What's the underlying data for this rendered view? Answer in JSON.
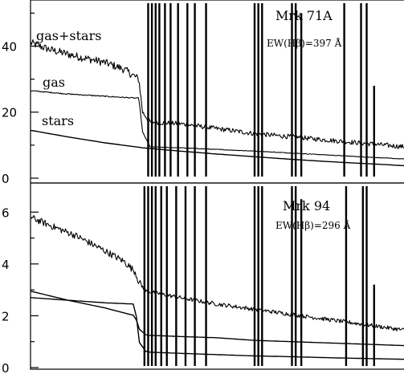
{
  "chart_data": [
    {
      "type": "line",
      "panel": "top",
      "title": "",
      "xlabel": "",
      "ylabel": "",
      "ylim": [
        0,
        53
      ],
      "yticks": [
        0,
        20,
        40
      ],
      "annotations": {
        "object": "Mrk  71A",
        "ew": "EW(Hβ)=397 Å",
        "series_labels": [
          "gas+stars",
          "gas",
          "stars"
        ]
      },
      "series": [
        {
          "name": "gas+stars",
          "x": [
            0,
            0.05,
            0.12,
            0.2,
            0.25,
            0.29,
            0.3,
            0.32,
            0.4,
            0.5,
            0.6,
            0.7,
            0.8,
            0.9,
            1.0
          ],
          "y": [
            41,
            39,
            37,
            35,
            33,
            30,
            20,
            17,
            16.5,
            15,
            13.5,
            12.5,
            11.5,
            10.5,
            9.5
          ],
          "noise": 1.2
        },
        {
          "name": "gas",
          "x": [
            0,
            0.1,
            0.2,
            0.29,
            0.3,
            0.32,
            0.4,
            0.5,
            0.6,
            0.7,
            0.8,
            0.9,
            1.0
          ],
          "y": [
            26.5,
            25.5,
            24.8,
            24.2,
            14,
            9.5,
            9.2,
            8.7,
            8.2,
            7.6,
            7,
            6.4,
            5.8
          ],
          "noise": 0.15
        },
        {
          "name": "stars",
          "x": [
            0,
            0.1,
            0.2,
            0.3,
            0.4,
            0.5,
            0.6,
            0.7,
            0.8,
            0.9,
            1.0
          ],
          "y": [
            14.5,
            12.5,
            10.7,
            9.2,
            8.2,
            7.3,
            6.5,
            5.7,
            5.0,
            4.4,
            3.8
          ],
          "noise": 0
        }
      ],
      "emission_lines": [
        {
          "x": 0.315,
          "y": 53
        },
        {
          "x": 0.325,
          "y": 53
        },
        {
          "x": 0.335,
          "y": 53
        },
        {
          "x": 0.345,
          "y": 53
        },
        {
          "x": 0.36,
          "y": 53
        },
        {
          "x": 0.375,
          "y": 53
        },
        {
          "x": 0.395,
          "y": 53
        },
        {
          "x": 0.42,
          "y": 53
        },
        {
          "x": 0.44,
          "y": 53
        },
        {
          "x": 0.47,
          "y": 53
        },
        {
          "x": 0.6,
          "y": 53
        },
        {
          "x": 0.61,
          "y": 53
        },
        {
          "x": 0.62,
          "y": 53
        },
        {
          "x": 0.7,
          "y": 53
        },
        {
          "x": 0.71,
          "y": 53
        },
        {
          "x": 0.725,
          "y": 50
        },
        {
          "x": 0.84,
          "y": 53
        },
        {
          "x": 0.885,
          "y": 53
        },
        {
          "x": 0.9,
          "y": 53
        },
        {
          "x": 0.92,
          "y": 28
        }
      ]
    },
    {
      "type": "line",
      "panel": "bottom",
      "title": "",
      "xlabel": "",
      "ylabel": "",
      "ylim": [
        0,
        7
      ],
      "yticks": [
        0,
        2,
        4,
        6
      ],
      "annotations": {
        "object": "Mrk  94",
        "ew": "EW(Hβ)=296 Å"
      },
      "series": [
        {
          "name": "gas+stars",
          "x": [
            0,
            0.05,
            0.12,
            0.2,
            0.25,
            0.28,
            0.29,
            0.31,
            0.4,
            0.5,
            0.6,
            0.7,
            0.8,
            0.9,
            1.0
          ],
          "y": [
            5.8,
            5.5,
            5.1,
            4.5,
            4.1,
            3.7,
            3.3,
            2.95,
            2.7,
            2.45,
            2.25,
            2.05,
            1.85,
            1.65,
            1.45
          ],
          "noise": 0.13
        },
        {
          "name": "stars",
          "x": [
            0,
            0.1,
            0.2,
            0.28,
            0.29,
            0.31,
            0.4,
            0.5,
            0.6,
            0.7,
            0.8,
            0.9,
            1.0
          ],
          "y": [
            2.95,
            2.6,
            2.3,
            2.0,
            1.5,
            1.25,
            1.2,
            1.15,
            1.05,
            1.0,
            0.95,
            0.9,
            0.85
          ],
          "noise": 0
        },
        {
          "name": "gas",
          "x": [
            0,
            0.1,
            0.2,
            0.28,
            0.29,
            0.31,
            0.4,
            0.5,
            0.6,
            0.7,
            0.8,
            0.9,
            1.0
          ],
          "y": [
            2.7,
            2.6,
            2.5,
            2.45,
            1.0,
            0.6,
            0.55,
            0.5,
            0.45,
            0.42,
            0.38,
            0.35,
            0.32
          ],
          "noise": 0
        }
      ],
      "emission_lines": [
        {
          "x": 0.305,
          "y": 7
        },
        {
          "x": 0.315,
          "y": 7
        },
        {
          "x": 0.325,
          "y": 7
        },
        {
          "x": 0.335,
          "y": 7
        },
        {
          "x": 0.35,
          "y": 7
        },
        {
          "x": 0.365,
          "y": 7
        },
        {
          "x": 0.39,
          "y": 7
        },
        {
          "x": 0.415,
          "y": 7
        },
        {
          "x": 0.44,
          "y": 7
        },
        {
          "x": 0.47,
          "y": 7
        },
        {
          "x": 0.6,
          "y": 7
        },
        {
          "x": 0.61,
          "y": 7
        },
        {
          "x": 0.62,
          "y": 7
        },
        {
          "x": 0.7,
          "y": 7
        },
        {
          "x": 0.71,
          "y": 7
        },
        {
          "x": 0.725,
          "y": 6.5
        },
        {
          "x": 0.845,
          "y": 7
        },
        {
          "x": 0.89,
          "y": 7
        },
        {
          "x": 0.9,
          "y": 7
        },
        {
          "x": 0.92,
          "y": 3.2
        }
      ]
    }
  ]
}
